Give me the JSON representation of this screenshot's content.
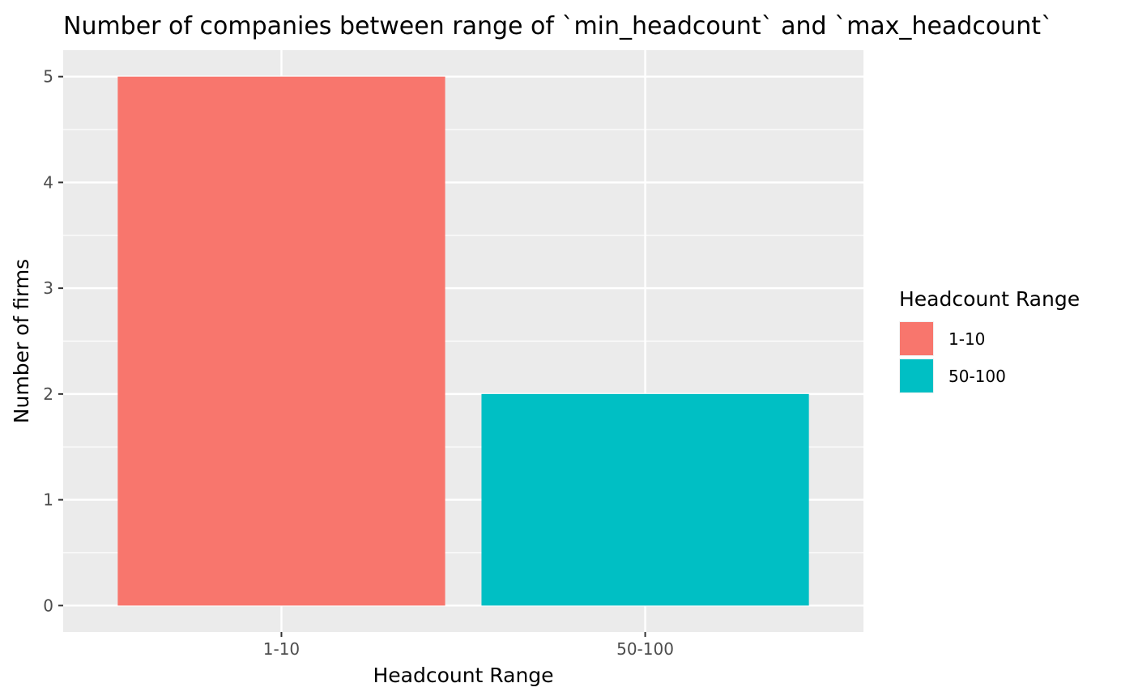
{
  "chart_data": {
    "type": "bar",
    "title": "Number of companies between range of `min_headcount` and `max_headcount`",
    "xlabel": "Headcount Range",
    "ylabel": "Number of firms",
    "categories": [
      "1-10",
      "50-100"
    ],
    "values": [
      5,
      2
    ],
    "colors": [
      "#F8766D",
      "#00BFC4"
    ],
    "ylim": [
      -0.25,
      5.25
    ],
    "yticks": [
      0,
      1,
      2,
      3,
      4,
      5
    ],
    "grid": true,
    "panel_background": "#EBEBEB",
    "legend": {
      "title": "Headcount Range",
      "placement": "right",
      "items": [
        {
          "label": "1-10",
          "color": "#F8766D"
        },
        {
          "label": "50-100",
          "color": "#00BFC4"
        }
      ]
    }
  }
}
